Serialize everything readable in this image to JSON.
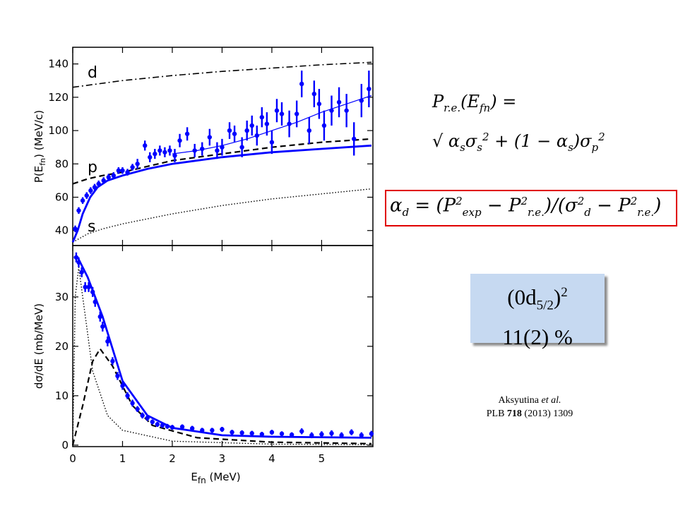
{
  "chart_data": [
    {
      "type": "errorbar",
      "ylabel": [
        "P(E",
        "fn",
        ")  (MeV/c)"
      ],
      "xlim": [
        0,
        6.03
      ],
      "ylim": [
        31,
        150
      ],
      "xticks": [
        0,
        1,
        2,
        3,
        4,
        5
      ],
      "yticks": [
        40,
        60,
        80,
        100,
        120,
        140
      ],
      "annotations": [
        "d",
        "p",
        "s"
      ],
      "points": {
        "color": "#0000ff",
        "x": [
          0.05,
          0.12,
          0.2,
          0.28,
          0.36,
          0.44,
          0.52,
          0.62,
          0.72,
          0.82,
          0.92,
          1.0,
          1.1,
          1.2,
          1.3,
          1.45,
          1.55,
          1.65,
          1.75,
          1.85,
          1.95,
          2.05,
          2.15,
          2.3,
          2.45,
          2.6,
          2.75,
          2.9,
          3.0,
          3.15,
          3.25,
          3.4,
          3.5,
          3.6,
          3.7,
          3.8,
          3.9,
          4.0,
          4.1,
          4.2,
          4.35,
          4.5,
          4.6,
          4.75,
          4.85,
          4.95,
          5.05,
          5.2,
          5.35,
          5.5,
          5.65,
          5.8,
          5.95
        ],
        "values": [
          41,
          52,
          58,
          61,
          64,
          66,
          68,
          70,
          72,
          73,
          76,
          76,
          75,
          78,
          80,
          91,
          84,
          86,
          88,
          87,
          88,
          85,
          94,
          98,
          88,
          89,
          96,
          88,
          90,
          100,
          98,
          90,
          100,
          103,
          97,
          108,
          104,
          93,
          112,
          110,
          104,
          110,
          128,
          100,
          122,
          116,
          103,
          112,
          117,
          112,
          95,
          118,
          125
        ],
        "errors": [
          2,
          2,
          2,
          2,
          2,
          2,
          2,
          2,
          2,
          2,
          2,
          2,
          2,
          2,
          3,
          3,
          3,
          3,
          3,
          3,
          3,
          4,
          4,
          4,
          4,
          4,
          5,
          5,
          5,
          5,
          5,
          6,
          6,
          6,
          6,
          6,
          7,
          7,
          7,
          7,
          8,
          8,
          8,
          8,
          8,
          9,
          9,
          9,
          9,
          10,
          10,
          10,
          11
        ]
      },
      "series": [
        {
          "color": "#000000",
          "style": "dashdot",
          "x": [
            0,
            1,
            2,
            3,
            4,
            5,
            6
          ],
          "values": [
            126,
            130,
            133,
            135.5,
            137.5,
            139.5,
            141
          ]
        },
        {
          "color": "#000000",
          "style": "dashed",
          "x": [
            0,
            0.3,
            0.6,
            1,
            2,
            3,
            4,
            5,
            6
          ],
          "values": [
            68,
            71,
            73,
            75,
            82,
            86,
            90,
            93,
            95
          ]
        },
        {
          "color": "#000000",
          "style": "dotted",
          "x": [
            0,
            0.3,
            0.6,
            1,
            2,
            3,
            4,
            5,
            6
          ],
          "values": [
            33,
            38,
            41,
            44,
            50,
            55,
            59,
            62,
            65
          ]
        },
        {
          "color": "#0000ff",
          "style": "thick",
          "x": [
            0,
            0.1,
            0.2,
            0.35,
            0.5,
            0.7,
            1,
            1.5,
            2,
            3,
            4,
            5,
            6
          ],
          "values": [
            33,
            40,
            50,
            60,
            66,
            70,
            73,
            77,
            80,
            84,
            87,
            89,
            91
          ]
        },
        {
          "color": "#0000ff",
          "style": "thin",
          "x": [
            2,
            2.5,
            3,
            3.5,
            4,
            4.5,
            5,
            5.5,
            6
          ],
          "values": [
            86,
            88,
            91,
            95,
            100,
            105,
            111,
            116,
            121
          ]
        }
      ]
    },
    {
      "type": "errorbar",
      "ylabel": [
        "dσ/dE  (mb/MeV)"
      ],
      "xlabel": [
        "E",
        "fn",
        "  (MeV)"
      ],
      "xlim": [
        0,
        6.03
      ],
      "ylim": [
        -0.3,
        40.4
      ],
      "xticks": [
        0,
        1,
        2,
        3,
        4,
        5
      ],
      "yticks": [
        0,
        10,
        20,
        30
      ],
      "points": {
        "color": "#0000ff",
        "x": [
          0.07,
          0.12,
          0.18,
          0.25,
          0.32,
          0.4,
          0.45,
          0.55,
          0.6,
          0.7,
          0.8,
          0.9,
          1.0,
          1.1,
          1.2,
          1.3,
          1.4,
          1.5,
          1.6,
          1.7,
          1.8,
          1.9,
          2.0,
          2.2,
          2.4,
          2.6,
          2.8,
          3.0,
          3.2,
          3.4,
          3.6,
          3.8,
          4.0,
          4.2,
          4.4,
          4.6,
          4.8,
          5.0,
          5.2,
          5.4,
          5.6,
          5.8,
          6.0
        ],
        "values": [
          38,
          37,
          35,
          32,
          32,
          31,
          29,
          26,
          24,
          21,
          17,
          14,
          12,
          10,
          8.5,
          7.3,
          6,
          5.5,
          4.7,
          4.2,
          4,
          3.8,
          3.6,
          3.7,
          3.4,
          3,
          3,
          3.2,
          2.6,
          2.5,
          2.4,
          2.2,
          2.6,
          2.3,
          2.1,
          2.8,
          2,
          2.2,
          2.4,
          2,
          2.6,
          2,
          2.3
        ],
        "errors": [
          1,
          1,
          1,
          1,
          1,
          1,
          1,
          1,
          1,
          1,
          0.8,
          0.8,
          0.8,
          0.7,
          0.7,
          0.6,
          0.6,
          0.6,
          0.5,
          0.5,
          0.5,
          0.5,
          0.5,
          0.5,
          0.5,
          0.5,
          0.5,
          0.5,
          0.5,
          0.5,
          0.5,
          0.5,
          0.5,
          0.5,
          0.5,
          0.6,
          0.6,
          0.6,
          0.6,
          0.6,
          0.6,
          0.6,
          0.6
        ]
      },
      "series": [
        {
          "color": "#000000",
          "style": "dashed",
          "x": [
            0,
            0.2,
            0.4,
            0.55,
            0.8,
            1.2,
            1.6,
            2.5,
            4,
            6
          ],
          "values": [
            0,
            8,
            17,
            19.5,
            16,
            8,
            4,
            1.5,
            0.6,
            0.3
          ]
        },
        {
          "color": "#000000",
          "style": "dotted",
          "x": [
            0,
            0.05,
            0.12,
            0.2,
            0.4,
            0.7,
            1,
            2,
            4,
            6
          ],
          "values": [
            0,
            30,
            36,
            30,
            15,
            6,
            3,
            0.8,
            0.2,
            0.1
          ]
        },
        {
          "color": "#0000ff",
          "style": "thick",
          "x": [
            0.02,
            0.1,
            0.3,
            0.6,
            1,
            1.5,
            2,
            3,
            4,
            6
          ],
          "values": [
            38,
            38,
            34,
            26,
            13,
            6,
            3.5,
            2,
            1.7,
            1.5
          ]
        }
      ]
    }
  ],
  "formula1": [
    {
      "text": "P"
    },
    {
      "sub": "r.e."
    },
    {
      "text": "(E"
    },
    {
      "sub": "fn"
    },
    {
      "text": ") ="
    }
  ],
  "formula2": [
    {
      "text": "√ α"
    },
    {
      "sub": "s"
    },
    {
      "text": "σ"
    },
    {
      "sub": "s"
    },
    {
      "sup": "2"
    },
    {
      "text": " + (1 − α"
    },
    {
      "sub": "s"
    },
    {
      "text": ")σ"
    },
    {
      "sub": "p"
    },
    {
      "sup": "2"
    }
  ],
  "formula3": [
    {
      "text": "α"
    },
    {
      "sub": "d"
    },
    {
      "text": " = (P"
    },
    {
      "sup": "2"
    },
    {
      "sub": "exp"
    },
    {
      "text": " − P"
    },
    {
      "sup": "2"
    },
    {
      "sub": "r.e."
    },
    {
      "text": ")/(σ"
    },
    {
      "sup": "2"
    },
    {
      "sub": "d"
    },
    {
      "text": " − P"
    },
    {
      "sup": "2"
    },
    {
      "sub": "r.e."
    },
    {
      "text": ")"
    }
  ],
  "box": {
    "line1": [
      {
        "text": "(0d"
      },
      {
        "sub": "5/2"
      },
      {
        "text": ")"
      },
      {
        "sup": "2"
      }
    ],
    "line2": "11(2) %"
  },
  "citation": {
    "line1": [
      {
        "text": "Aksyutina "
      },
      {
        "i": "et al."
      }
    ],
    "line2": [
      {
        "text": "PLB "
      },
      {
        "b": "718"
      },
      {
        "text": " (2013) 1309"
      }
    ]
  }
}
